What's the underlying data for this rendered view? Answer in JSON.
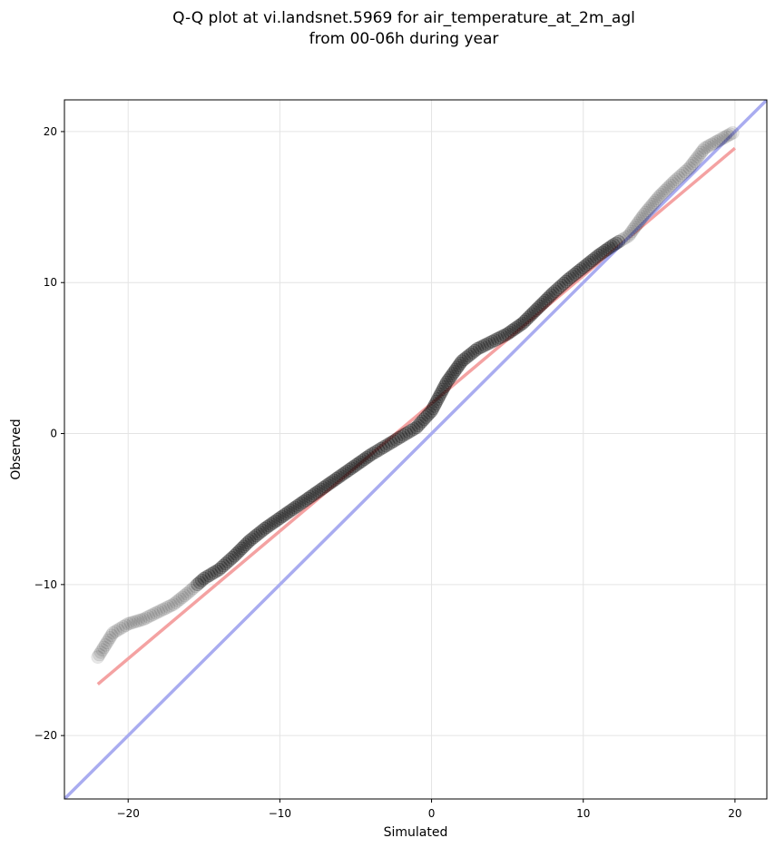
{
  "chart_data": {
    "type": "scatter",
    "title_lines": [
      "Q-Q plot at vi.landsnet.5969 for air_temperature_at_2m_agl",
      "from 00-06h during year"
    ],
    "xlabel": "Simulated",
    "ylabel": "Observed",
    "xlim": [
      -24.2,
      22.1
    ],
    "ylim": [
      -24.2,
      22.1
    ],
    "xticks": [
      -20,
      -10,
      0,
      10,
      20
    ],
    "yticks": [
      -20,
      -10,
      0,
      10,
      20
    ],
    "xtick_labels": [
      "−20",
      "−10",
      "0",
      "10",
      "20"
    ],
    "ytick_labels": [
      "−20",
      "−10",
      "0",
      "10",
      "20"
    ],
    "grid": true,
    "quantile_points": {
      "x": [
        -22.0,
        -21.0,
        -20.0,
        -19.0,
        -18.0,
        -17.0,
        -16.0,
        -15.0,
        -14.0,
        -13.0,
        -12.0,
        -11.0,
        -10.0,
        -9.0,
        -8.0,
        -7.0,
        -6.0,
        -5.0,
        -4.0,
        -3.0,
        -2.0,
        -1.0,
        0.0,
        1.0,
        2.0,
        3.0,
        4.0,
        5.0,
        6.0,
        7.0,
        8.0,
        9.0,
        10.0,
        11.0,
        12.0,
        13.0,
        14.0,
        15.0,
        16.0,
        17.0,
        18.0,
        20.0
      ],
      "y": [
        -14.8,
        -13.2,
        -12.6,
        -12.3,
        -11.8,
        -11.3,
        -10.5,
        -9.6,
        -9.0,
        -8.1,
        -7.1,
        -6.3,
        -5.6,
        -4.9,
        -4.2,
        -3.5,
        -2.8,
        -2.1,
        -1.4,
        -0.8,
        -0.2,
        0.4,
        1.5,
        3.4,
        4.8,
        5.6,
        6.1,
        6.6,
        7.3,
        8.3,
        9.3,
        10.2,
        11.0,
        11.8,
        12.5,
        13.1,
        14.5,
        15.7,
        16.7,
        17.6,
        18.9,
        20.0
      ],
      "color": "#000000"
    },
    "series": [
      {
        "points": [
          [
            -22.0,
            -16.6
          ],
          [
            20.0,
            18.9
          ]
        ],
        "color": "#f4a2a2"
      },
      {
        "points": [
          [
            -24.2,
            -24.2
          ],
          [
            22.1,
            22.1
          ]
        ],
        "color": "#a9acf0"
      }
    ]
  }
}
